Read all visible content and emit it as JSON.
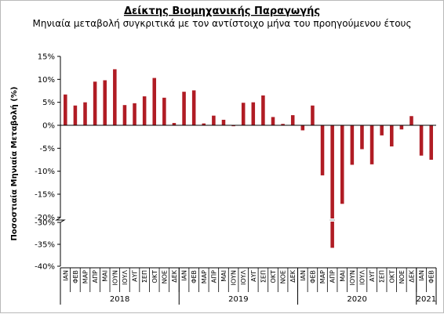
{
  "chart_data": {
    "type": "bar",
    "title": "Δείκτης Βιομηχανικής Παραγωγής",
    "subtitle": "Μηνιαία μεταβολή συγκριτικά με τον αντίστοιχο μήνα του προηγούμενου έτους",
    "ylabel": "Ποσοστιαία Μηνιαία Μεταβολή (%)",
    "ylim": [
      -40,
      15
    ],
    "axis_break": [
      -30,
      -20
    ],
    "y_ticks": [
      "15%",
      "10%",
      "5%",
      "0%",
      "-5%",
      "-10%",
      "-15%",
      "-20%",
      "-30%",
      "-35%",
      "-40%"
    ],
    "y_tick_values": [
      15,
      10,
      5,
      0,
      -5,
      -10,
      -15,
      -20,
      -30,
      -35,
      -40
    ],
    "bar_color": "#b01c24",
    "grid": false,
    "categories": [
      "ΙΑΝ",
      "ΦΕΒ",
      "ΜΑΡ",
      "ΑΠΡ",
      "ΜΑΙ",
      "ΙΟΥΝ",
      "ΙΟΥΛ",
      "ΑΥΓ",
      "ΣΕΠ",
      "ΟΚΤ",
      "ΝΟΕ",
      "ΔΕΚ",
      "ΙΑΝ",
      "ΦΕΒ",
      "ΜΑΡ",
      "ΑΠΡ",
      "ΜΑΙ",
      "ΙΟΥΝ",
      "ΙΟΥΛ",
      "ΑΥΓ",
      "ΣΕΠ",
      "ΟΚΤ",
      "ΝΟΕ",
      "ΔΕΚ",
      "ΙΑΝ",
      "ΦΕΒ",
      "ΜΑΡ",
      "ΑΠΡ",
      "ΜΑΙ",
      "ΙΟΥΝ",
      "ΙΟΥΛ",
      "ΑΥΓ",
      "ΣΕΠ",
      "ΟΚΤ",
      "ΝΟΕ",
      "ΔΕΚ",
      "ΙΑΝ",
      "ΦΕΒ"
    ],
    "values": [
      6.7,
      4.3,
      5.0,
      9.5,
      9.8,
      12.2,
      4.4,
      4.8,
      6.3,
      10.3,
      6.0,
      0.5,
      7.3,
      7.6,
      0.4,
      2.1,
      1.2,
      -0.2,
      4.9,
      5.0,
      6.5,
      1.8,
      0.3,
      2.2,
      -1.1,
      4.3,
      -10.9,
      -35.8,
      -17.1,
      -8.6,
      -5.2,
      -8.5,
      -2.2,
      -4.6,
      -0.9,
      2.0,
      -6.6,
      -7.5
    ],
    "groups": [
      {
        "label": "2018",
        "count": 12
      },
      {
        "label": "2019",
        "count": 12
      },
      {
        "label": "2020",
        "count": 12
      },
      {
        "label": "2021",
        "count": 2
      }
    ]
  }
}
